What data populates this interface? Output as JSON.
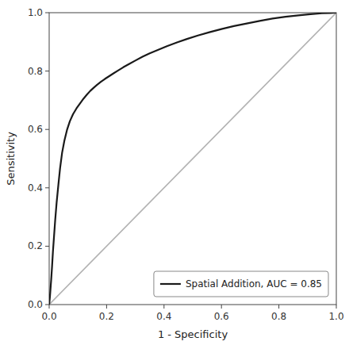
{
  "chart_data": {
    "type": "line",
    "xlabel": "1 - Specificity",
    "ylabel": "Sensitivity",
    "xlim": [
      0.0,
      1.0
    ],
    "ylim": [
      0.0,
      1.0
    ],
    "xticks": [
      {
        "value": 0.0,
        "label": "0.0"
      },
      0.2,
      0.4,
      0.6,
      0.8,
      {
        "value": 1.0,
        "label": "1.0"
      }
    ],
    "yticks": [
      {
        "value": 0.0,
        "label": "0.0"
      },
      0.2,
      0.4,
      0.6,
      0.8,
      {
        "value": 1.0,
        "label": "1.0"
      }
    ],
    "grid": false,
    "legend": "lower right",
    "series": [
      {
        "color": "#b3b3b3",
        "x": [
          0,
          1
        ],
        "values": [
          0,
          1
        ]
      },
      {
        "name": "Spatial Addition, AUC = 0.85",
        "color": "#1a1a1a",
        "x": [
          0.0,
          0.002,
          0.004,
          0.007,
          0.01,
          0.013,
          0.017,
          0.021,
          0.026,
          0.032,
          0.038,
          0.045,
          0.053,
          0.062,
          0.072,
          0.083,
          0.095,
          0.108,
          0.12,
          0.132,
          0.143,
          0.155,
          0.167,
          0.18,
          0.194,
          0.208,
          0.224,
          0.24,
          0.258,
          0.278,
          0.3,
          0.325,
          0.35,
          0.38,
          0.41,
          0.445,
          0.48,
          0.518,
          0.558,
          0.6,
          0.643,
          0.688,
          0.733,
          0.778,
          0.823,
          0.868,
          0.91,
          0.95,
          0.98,
          1.0
        ],
        "values": [
          0.0,
          0.02,
          0.045,
          0.085,
          0.13,
          0.18,
          0.235,
          0.29,
          0.35,
          0.41,
          0.468,
          0.52,
          0.562,
          0.598,
          0.628,
          0.652,
          0.672,
          0.69,
          0.706,
          0.72,
          0.732,
          0.743,
          0.753,
          0.763,
          0.773,
          0.782,
          0.792,
          0.802,
          0.813,
          0.824,
          0.836,
          0.849,
          0.861,
          0.873,
          0.885,
          0.898,
          0.91,
          0.922,
          0.933,
          0.944,
          0.954,
          0.963,
          0.972,
          0.98,
          0.986,
          0.991,
          0.995,
          0.998,
          0.999,
          1.0
        ]
      }
    ]
  }
}
